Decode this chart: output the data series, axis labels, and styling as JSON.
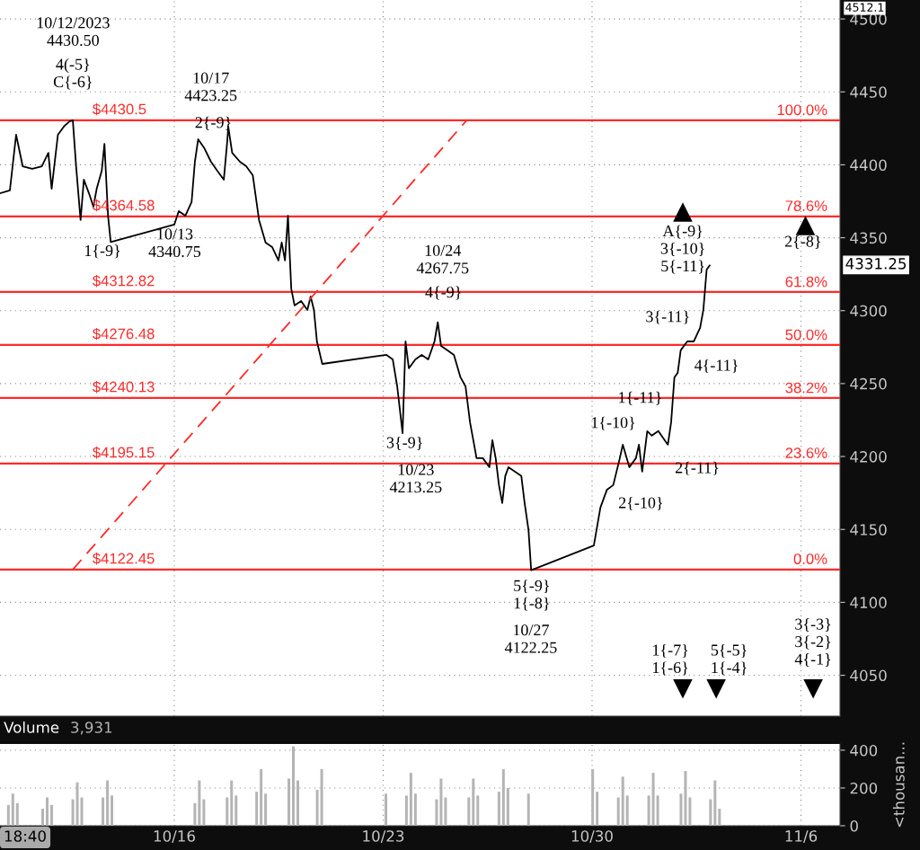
{
  "chart_data": [
    {
      "type": "line",
      "xlim": [
        "2023-10-10T03:50",
        "2023-11-07T07:26"
      ],
      "ylim": [
        4022,
        4513
      ],
      "xticks": [
        {
          "value": "2023-10-16",
          "label": null
        },
        {
          "value": "2023-10-23",
          "label": null
        },
        {
          "value": "2023-10-30",
          "label": null
        },
        {
          "value": "2023-11-06",
          "label": null
        }
      ],
      "yticks": [
        4050,
        4100,
        4150,
        4200,
        4250,
        4300,
        4350,
        4400,
        4450,
        4500
      ],
      "tick_labels": "y",
      "grid": true,
      "series": [
        {
          "type": "line",
          "color": "#000000",
          "x": [
            "2023-10-10T03:50",
            "2023-10-10T11:46",
            "2023-10-10T16:48",
            "2023-10-10T22:05",
            "2023-10-11T05:46",
            "2023-10-11T13:26",
            "2023-10-11T18:43",
            "2023-10-11T21:22",
            "2023-10-12T02:24",
            "2023-10-12T07:41",
            "2023-10-12T11:46",
            "2023-10-12T14:24",
            "2023-10-12T17:02",
            "2023-10-12T20:38",
            "2023-10-12T23:17",
            "2023-10-13T03:22",
            "2023-10-13T06:58",
            "2023-10-13T09:36",
            "2023-10-13T13:41",
            "2023-10-13T15:50",
            "2023-10-13T18:43",
            "2023-10-13T20:53",
            "2023-10-16T00:00",
            "2023-10-16T03:36",
            "2023-10-16T08:53",
            "2023-10-16T13:55",
            "2023-10-16T16:34",
            "2023-10-16T19:12",
            "2023-10-17T00:14",
            "2023-10-17T05:31",
            "2023-10-17T10:34",
            "2023-10-17T15:50",
            "2023-10-17T18:29",
            "2023-10-17T19:26",
            "2023-10-17T22:34",
            "2023-10-18T04:48",
            "2023-10-18T09:50",
            "2023-10-18T15:07",
            "2023-10-18T20:10",
            "2023-10-19T01:26",
            "2023-10-19T06:43",
            "2023-10-19T11:46",
            "2023-10-19T14:24",
            "2023-10-19T17:02",
            "2023-10-19T19:26",
            "2023-10-19T22:05",
            "2023-10-20T00:43",
            "2023-10-20T06:00",
            "2023-10-20T11:02",
            "2023-10-20T13:41",
            "2023-10-20T16:19",
            "2023-10-20T18:43",
            "2023-10-20T23:02",
            "2023-10-23T02:38",
            "2023-10-23T07:41",
            "2023-10-23T11:17",
            "2023-10-23T15:36",
            "2023-10-23T18:00",
            "2023-10-23T20:38",
            "2023-10-24T01:55",
            "2023-10-24T06:58",
            "2023-10-24T12:14",
            "2023-10-24T17:17",
            "2023-10-24T19:55",
            "2023-10-24T22:34",
            "2023-10-25T03:50",
            "2023-10-25T08:53",
            "2023-10-25T14:10",
            "2023-10-25T18:14",
            "2023-10-25T21:50",
            "2023-10-26T00:29",
            "2023-10-26T03:07",
            "2023-10-26T08:10",
            "2023-10-26T13:26",
            "2023-10-26T15:50",
            "2023-10-26T18:29",
            "2023-10-26T21:07",
            "2023-10-26T23:46",
            "2023-10-27T02:10",
            "2023-10-27T04:48",
            "2023-10-27T10:05",
            "2023-10-27T15:07",
            "2023-10-27T17:46",
            "2023-10-27T20:53",
            "2023-10-27T23:02",
            "2023-10-30T01:26",
            "2023-10-30T06:43",
            "2023-10-30T12:00",
            "2023-10-30T17:02",
            "2023-10-30T22:19",
            "2023-10-31T00:43",
            "2023-10-31T06:00",
            "2023-10-31T11:17",
            "2023-10-31T13:41",
            "2023-10-31T16:19",
            "2023-10-31T20:24",
            "2023-11-01T00:00",
            "2023-11-01T05:17",
            "2023-11-01T12:58",
            "2023-11-01T15:36",
            "2023-11-01T18:14",
            "2023-11-01T20:53",
            "2023-11-01T23:17",
            "2023-11-02T04:34",
            "2023-11-02T09:50",
            "2023-11-02T14:53",
            "2023-11-02T17:31",
            "2023-11-02T20:10",
            "2023-11-02T22:34"
          ],
          "values": [
            4380.5,
            4382.4,
            4420.6,
            4399.0,
            4397.2,
            4399.0,
            4408.2,
            4383.6,
            4420.6,
            4426.7,
            4429.8,
            4430.5,
            4399.0,
            4362.1,
            4389.8,
            4380.5,
            4371.3,
            4383.6,
            4395.9,
            4414.4,
            4365.1,
            4347.0,
            4359.0,
            4368.2,
            4365.1,
            4374.4,
            4402.1,
            4417.5,
            4411.3,
            4402.1,
            4395.9,
            4389.8,
            4415.0,
            4426.0,
            4408.2,
            4402.1,
            4399.0,
            4392.9,
            4362.1,
            4346.7,
            4343.6,
            4334.4,
            4346.7,
            4334.4,
            4365.1,
            4315.0,
            4303.6,
            4306.6,
            4300.5,
            4309.7,
            4300.5,
            4278.9,
            4263.5,
            4269.7,
            4266.6,
            4248.1,
            4216.0,
            4278.9,
            4260.5,
            4266.6,
            4269.7,
            4266.6,
            4278.9,
            4292.0,
            4275.8,
            4272.8,
            4269.7,
            4254.3,
            4248.1,
            4223.5,
            4211.2,
            4198.9,
            4198.9,
            4192.7,
            4211.2,
            4198.9,
            4180.4,
            4168.1,
            4186.6,
            4192.7,
            4189.6,
            4186.6,
            4168.1,
            4149.6,
            4122.0,
            4139.0,
            4165.0,
            4177.3,
            4180.4,
            4198.9,
            4208.1,
            4192.7,
            4198.9,
            4208.1,
            4189.6,
            4217.4,
            4214.3,
            4217.4,
            4208.1,
            4223.5,
            4254.3,
            4257.4,
            4272.8,
            4278.9,
            4278.9,
            4288.2,
            4300.5,
            4328.2,
            4331.0
          ]
        },
        {
          "type": "line",
          "color": "#ff2a2a",
          "line_style": "dashed",
          "x": [
            "2023-10-12T14:24",
            "2023-10-25T19:12"
          ],
          "values": [
            4122.5,
            4430.5
          ]
        },
        {
          "type": "scatter",
          "color": "#000000",
          "marker": "triangle",
          "x": [
            "2023-11-02T00:58",
            "2023-11-06T03:36"
          ],
          "values": [
            4367.6,
            4358.4
          ]
        },
        {
          "type": "scatter",
          "color": "#000000",
          "marker": "triangle",
          "x": [
            "2023-11-02T00:58",
            "2023-11-03T03:50",
            "2023-11-06T09:50"
          ],
          "values": [
            4040.6,
            4040.6,
            4040.6
          ]
        }
      ],
      "ref_lines": [
        {
          "axis": "y",
          "value": 4430.5,
          "label": "$4430.5",
          "color": "#ff2a2a"
        },
        {
          "axis": "y",
          "value": 4364.58,
          "label": "$4364.58",
          "color": "#ff2a2a"
        },
        {
          "axis": "y",
          "value": 4312.82,
          "label": "$4312.82",
          "color": "#ff2a2a"
        },
        {
          "axis": "y",
          "value": 4276.48,
          "label": "$4276.48",
          "color": "#ff2a2a"
        },
        {
          "axis": "y",
          "value": 4240.13,
          "label": "$4240.13",
          "color": "#ff2a2a"
        },
        {
          "axis": "y",
          "value": 4195.15,
          "label": "$4195.15",
          "color": "#ff2a2a"
        },
        {
          "axis": "y",
          "value": 4122.45,
          "label": "$4122.45",
          "color": "#ff2a2a"
        }
      ],
      "annotations": [
        "100.0%",
        "78.6%",
        "61.8%",
        "50.0%",
        "38.2%",
        "23.6%",
        "0.0%",
        "10/12/2023\n4430.50",
        "4(-5}\nC{-6}",
        "10/17\n4423.25",
        "2{-9}",
        "1{-9}",
        "10/13\n4340.75",
        "10/24\n4267.75",
        "4{-9}",
        "3{-9}",
        "10/23\n4213.25",
        "5{-9}\n1{-8}",
        "10/27\n4122.25",
        "1{-10}",
        "2{-10}",
        "1{-11}",
        "2{-11}",
        "3{-11}",
        "4{-11}",
        "A{-9}\n3{-10}\n5{-11}",
        "2{-8}",
        "1{-7}\n1{-6}",
        "5{-5}\n1{-4}",
        "3{-3}\n3{-2}\n4{-1}",
        "4512.1",
        "4331.25"
      ]
    },
    {
      "type": "bar",
      "color": "#b4b4b4",
      "xlim": [
        "2023-10-10T03:50",
        "2023-11-07T07:26"
      ],
      "ylim": [
        0,
        433
      ],
      "xticks": [
        {
          "value": "2023-10-16",
          "label": "10/16"
        },
        {
          "value": "2023-10-23",
          "label": "10/23"
        },
        {
          "value": "2023-10-30",
          "label": "10/30"
        },
        {
          "value": "2023-11-06",
          "label": "11/6"
        }
      ],
      "yticks": [
        0,
        200,
        400
      ],
      "grid": true,
      "ylabel": "<thousan...",
      "x": [
        "2023-10-10T10:34",
        "2023-10-10T14:10",
        "2023-10-10T17:46",
        "2023-10-11T14:10",
        "2023-10-11T17:46",
        "2023-10-11T21:22",
        "2023-10-12T14:24",
        "2023-10-12T18:00",
        "2023-10-12T21:36",
        "2023-10-13T14:38",
        "2023-10-13T18:14",
        "2023-10-13T21:50",
        "2023-10-16T16:34",
        "2023-10-16T20:10",
        "2023-10-16T23:46",
        "2023-10-17T18:29",
        "2023-10-17T22:05",
        "2023-10-18T01:41",
        "2023-10-18T18:14",
        "2023-10-18T21:50",
        "2023-10-19T01:26",
        "2023-10-19T20:10",
        "2023-10-19T23:46",
        "2023-10-20T03:22",
        "2023-10-20T18:58",
        "2023-10-20T22:34",
        "2023-10-23T02:10",
        "2023-10-23T18:43",
        "2023-10-23T22:19",
        "2023-10-24T01:55",
        "2023-10-24T18:58",
        "2023-10-24T22:34",
        "2023-10-25T02:10",
        "2023-10-25T20:53",
        "2023-10-26T00:29",
        "2023-10-26T04:05",
        "2023-10-26T21:07",
        "2023-10-27T00:43",
        "2023-10-27T04:19",
        "2023-10-27T20:53",
        "2023-10-30T00:29",
        "2023-10-30T04:05",
        "2023-10-30T21:07",
        "2023-10-31T00:43",
        "2023-10-31T04:19",
        "2023-10-31T21:36",
        "2023-11-01T01:12",
        "2023-11-01T04:48",
        "2023-11-01T23:31",
        "2023-11-02T03:07",
        "2023-11-02T06:43",
        "2023-11-02T23:17",
        "2023-11-03T02:53",
        "2023-11-03T06:29"
      ],
      "values": [
        110,
        170,
        120,
        90,
        150,
        110,
        140,
        230,
        150,
        150,
        240,
        160,
        120,
        240,
        140,
        150,
        240,
        160,
        180,
        300,
        170,
        250,
        420,
        240,
        190,
        300,
        170,
        160,
        280,
        170,
        140,
        250,
        150,
        150,
        250,
        160,
        180,
        300,
        200,
        170,
        300,
        180,
        150,
        260,
        160,
        160,
        280,
        160,
        170,
        290,
        150,
        140,
        240,
        90
      ],
      "annotations": [
        "Volume",
        "3,931",
        "18:40"
      ]
    }
  ]
}
